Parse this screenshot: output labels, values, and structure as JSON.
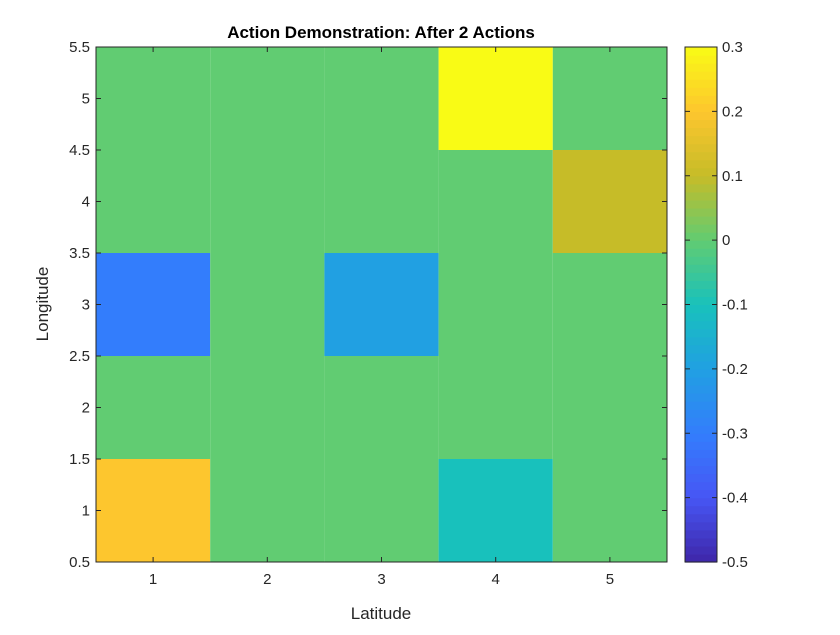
{
  "chart_data": {
    "type": "heatmap",
    "title": "Action Demonstration: After 2 Actions",
    "xlabel": "Latitude",
    "ylabel": "Longitude",
    "x": [
      1,
      2,
      3,
      4,
      5
    ],
    "y": [
      1,
      2,
      3,
      4,
      5
    ],
    "xlim": [
      0.5,
      5.5
    ],
    "ylim": [
      0.5,
      5.5
    ],
    "x_ticks": [
      1,
      2,
      3,
      4,
      5
    ],
    "x_tick_labels": [
      "1",
      "2",
      "3",
      "4",
      "5"
    ],
    "y_ticks": [
      0.5,
      1,
      1.5,
      2,
      2.5,
      3,
      3.5,
      4,
      4.5,
      5,
      5.5
    ],
    "y_tick_labels": [
      "0.5",
      "1",
      "1.5",
      "2",
      "2.5",
      "3",
      "3.5",
      "4",
      "4.5",
      "5",
      "5.5"
    ],
    "values_by_row_y": [
      [
        0.2,
        0,
        0,
        -0.1,
        0
      ],
      [
        0,
        0,
        0,
        0,
        0
      ],
      [
        -0.3,
        0,
        -0.2,
        0,
        0
      ],
      [
        0,
        0,
        0,
        0,
        0.1
      ],
      [
        0,
        0,
        0,
        0.3,
        0
      ]
    ],
    "colormap": "parula",
    "clim": [
      -0.5,
      0.3
    ],
    "colorbar": {
      "ticks": [
        -0.5,
        -0.4,
        -0.3,
        -0.2,
        -0.1,
        0,
        0.1,
        0.2,
        0.3
      ],
      "tick_labels": [
        "-0.5",
        "-0.4",
        "-0.3",
        "-0.2",
        "-0.1",
        "0",
        "0.1",
        "0.2",
        "0.3"
      ],
      "placement": "right"
    },
    "grid": false
  }
}
